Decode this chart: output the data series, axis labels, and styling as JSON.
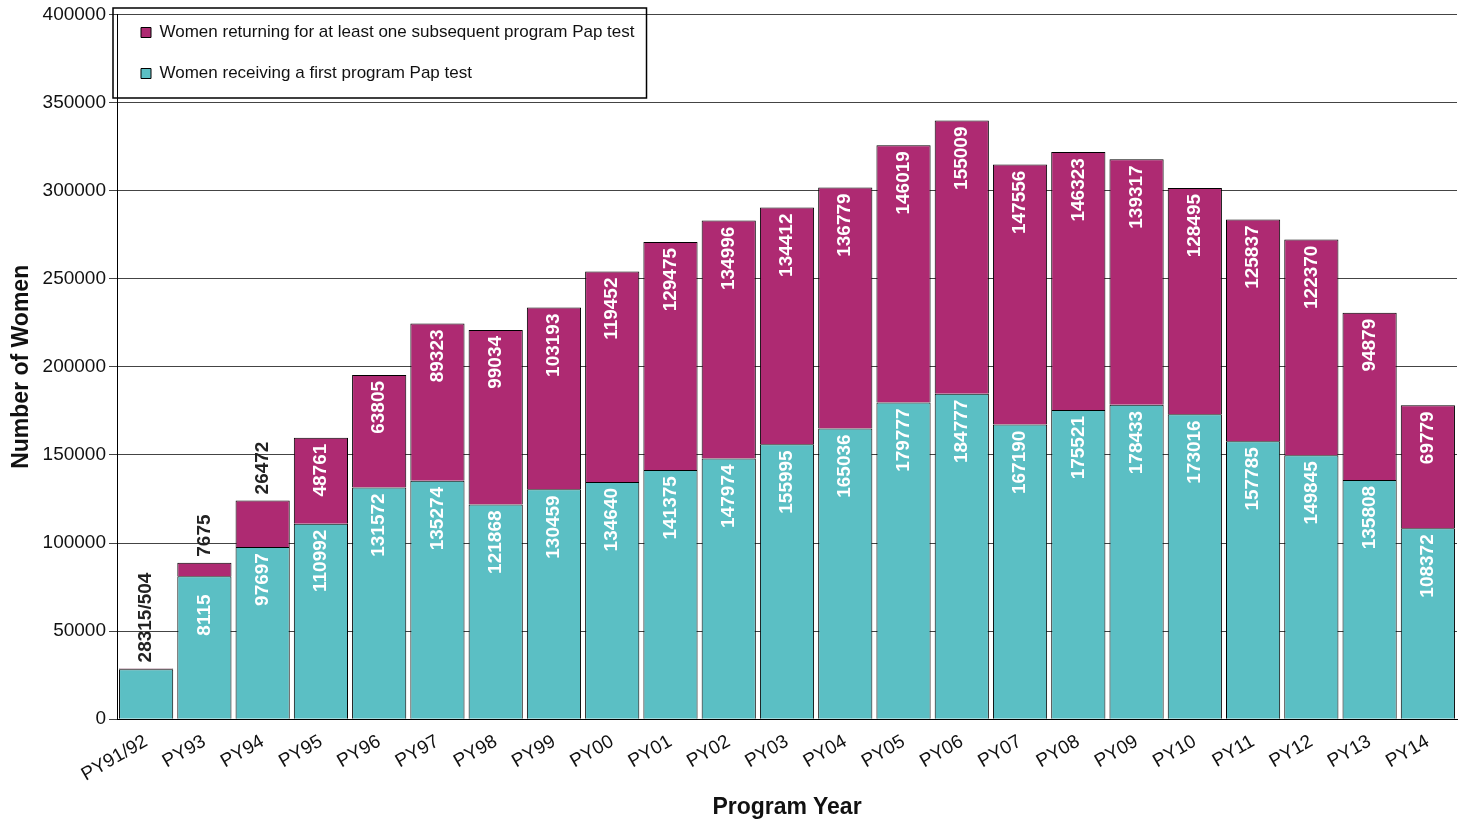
{
  "chart_data": {
    "type": "bar",
    "stacked": true,
    "xlabel": "Program Year",
    "ylabel": "Number of Women",
    "categories": [
      "PY91/92",
      "PY93",
      "PY94",
      "PY95",
      "PY96",
      "PY97",
      "PY98",
      "PY99",
      "PY00",
      "PY01",
      "PY02",
      "PY03",
      "PY04",
      "PY05",
      "PY06",
      "PY07",
      "PY08",
      "PY09",
      "PY10",
      "PY11",
      "PY12",
      "PY13",
      "PY14"
    ],
    "series": [
      {
        "name": "Women receiving a first program Pap test",
        "color": "#5bbfc4",
        "values": [
          28315,
          81150,
          97697,
          110992,
          131572,
          135274,
          121868,
          130459,
          134640,
          141375,
          147974,
          155995,
          165036,
          179777,
          184777,
          167190,
          175521,
          178433,
          173016,
          157785,
          149845,
          135808,
          108372
        ],
        "value_labels": [
          null,
          null,
          "97697",
          "110992",
          "131572",
          "135274",
          "121868",
          "130459",
          "134640",
          "141375",
          "147974",
          "155995",
          "165036",
          "179777",
          "184777",
          "167190",
          "175521",
          "178433",
          "173016",
          "157785",
          "149845",
          "135808",
          "108372"
        ]
      },
      {
        "name": "Women returning for at least one subsequent program Pap test",
        "color": "#ae2a72",
        "values": [
          504,
          7675,
          26472,
          48761,
          63805,
          89323,
          99034,
          103193,
          119452,
          129475,
          134996,
          134412,
          136779,
          146019,
          155009,
          147556,
          146323,
          139317,
          128495,
          125837,
          122370,
          94879,
          69779
        ],
        "value_labels": [
          null,
          "7675",
          "26472",
          "48761",
          "63805",
          "89323",
          "99034",
          "103193",
          "119452",
          "129475",
          "134996",
          "134412",
          "136779",
          "146019",
          "155009",
          "147556",
          "146323",
          "139317",
          "128495",
          "125837",
          "122370",
          "94879",
          "69779"
        ]
      }
    ],
    "annotations": [
      {
        "text": "28315/504",
        "x": "PY91/92",
        "y": 28819
      },
      {
        "text": "8115",
        "x": "PY93",
        "y": 44000
      }
    ],
    "ylim": [
      0,
      400000
    ],
    "yticks": [
      0,
      50000,
      100000,
      150000,
      200000,
      250000,
      300000,
      350000,
      400000
    ],
    "grid": "y",
    "legend": "top left"
  }
}
